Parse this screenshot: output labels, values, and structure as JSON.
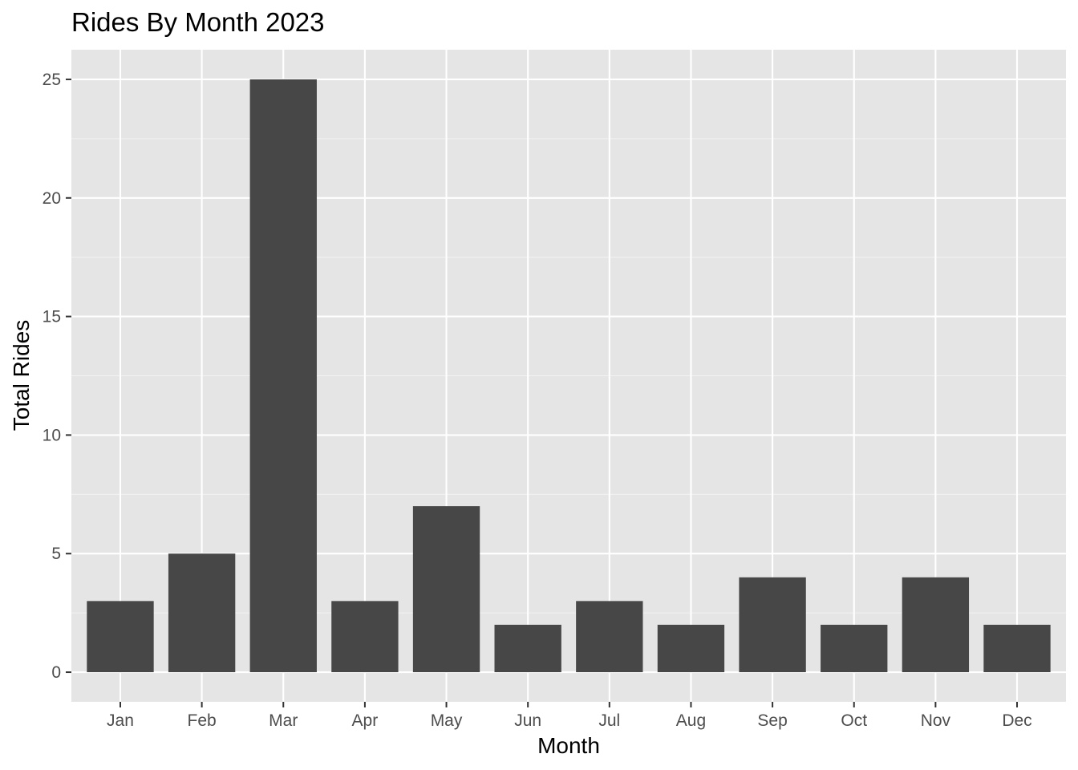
{
  "chart_data": {
    "type": "bar",
    "title": "Rides By Month 2023",
    "xlabel": "Month",
    "ylabel": "Total Rides",
    "categories": [
      "Jan",
      "Feb",
      "Mar",
      "Apr",
      "May",
      "Jun",
      "Jul",
      "Aug",
      "Sep",
      "Oct",
      "Nov",
      "Dec"
    ],
    "values": [
      3,
      5,
      25,
      3,
      7,
      2,
      3,
      2,
      4,
      2,
      4,
      2
    ],
    "ylim": [
      -1.25,
      26.25
    ],
    "yticks": [
      0,
      5,
      10,
      15,
      20,
      25
    ],
    "grid": true,
    "legend": "none",
    "colors": {
      "panel_background": "#e5e5e5",
      "grid_major": "#ffffff",
      "grid_minor": "#f2f2f2",
      "bar_fill": "#474747",
      "tick_text": "#4d4d4d",
      "tick_mark": "#333333"
    }
  }
}
